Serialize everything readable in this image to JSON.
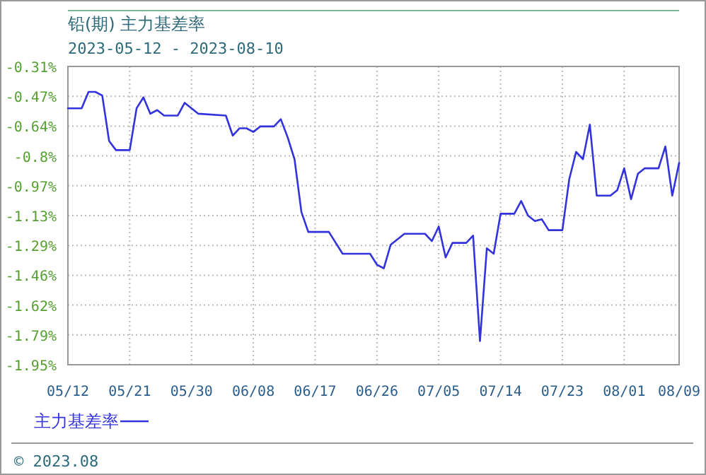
{
  "chart_data": {
    "type": "line",
    "title": "铅(期) 主力基差率",
    "subtitle": "2023-05-12 - 2023-08-10",
    "annotations": [
      "© 2023.08"
    ],
    "x": [
      "2023-05-12",
      "2023-05-14",
      "2023-05-15",
      "2023-05-16",
      "2023-05-17",
      "2023-05-18",
      "2023-05-19",
      "2023-05-21",
      "2023-05-22",
      "2023-05-23",
      "2023-05-24",
      "2023-05-25",
      "2023-05-26",
      "2023-05-28",
      "2023-05-29",
      "2023-05-31",
      "2023-06-04",
      "2023-06-05",
      "2023-06-06",
      "2023-06-07",
      "2023-06-08",
      "2023-06-09",
      "2023-06-11",
      "2023-06-12",
      "2023-06-13",
      "2023-06-14",
      "2023-06-15",
      "2023-06-16",
      "2023-06-19",
      "2023-06-21",
      "2023-06-25",
      "2023-06-26",
      "2023-06-27",
      "2023-06-28",
      "2023-06-30",
      "2023-07-03",
      "2023-07-04",
      "2023-07-05",
      "2023-07-06",
      "2023-07-07",
      "2023-07-09",
      "2023-07-10",
      "2023-07-11",
      "2023-07-12",
      "2023-07-13",
      "2023-07-14",
      "2023-07-16",
      "2023-07-17",
      "2023-07-18",
      "2023-07-19",
      "2023-07-20",
      "2023-07-21",
      "2023-07-23",
      "2023-07-24",
      "2023-07-25",
      "2023-07-26",
      "2023-07-27",
      "2023-07-28",
      "2023-07-30",
      "2023-07-31",
      "2023-08-01",
      "2023-08-02",
      "2023-08-03",
      "2023-08-04",
      "2023-08-06",
      "2023-08-07",
      "2023-08-08",
      "2023-08-09"
    ],
    "series": [
      {
        "name": "主力基差率",
        "color": "#3333dd",
        "values": [
          -0.54,
          -0.54,
          -0.45,
          -0.45,
          -0.47,
          -0.72,
          -0.77,
          -0.77,
          -0.54,
          -0.48,
          -0.57,
          -0.55,
          -0.58,
          -0.58,
          -0.51,
          -0.57,
          -0.58,
          -0.69,
          -0.65,
          -0.65,
          -0.67,
          -0.64,
          -0.64,
          -0.6,
          -0.7,
          -0.82,
          -1.11,
          -1.22,
          -1.22,
          -1.34,
          -1.34,
          -1.4,
          -1.42,
          -1.29,
          -1.23,
          -1.23,
          -1.27,
          -1.19,
          -1.36,
          -1.28,
          -1.28,
          -1.24,
          -1.82,
          -1.31,
          -1.34,
          -1.12,
          -1.12,
          -1.05,
          -1.13,
          -1.16,
          -1.15,
          -1.21,
          -1.21,
          -0.93,
          -0.78,
          -0.82,
          -0.63,
          -1.02,
          -1.02,
          -0.99,
          -0.87,
          -1.04,
          -0.9,
          -0.87,
          -0.87,
          -0.75,
          -1.02,
          -0.84
        ]
      }
    ],
    "xlim": [
      "2023-05-12",
      "2023-08-09"
    ],
    "xticks": [
      {
        "value": "2023-05-12",
        "label": "05/12"
      },
      {
        "value": "2023-05-21",
        "label": "05/21"
      },
      {
        "value": "2023-05-30",
        "label": "05/30"
      },
      {
        "value": "2023-06-08",
        "label": "06/08"
      },
      {
        "value": "2023-06-17",
        "label": "06/17"
      },
      {
        "value": "2023-06-26",
        "label": "06/26"
      },
      {
        "value": "2023-07-05",
        "label": "07/05"
      },
      {
        "value": "2023-07-14",
        "label": "07/14"
      },
      {
        "value": "2023-07-23",
        "label": "07/23"
      },
      {
        "value": "2023-08-01",
        "label": "08/01"
      },
      {
        "value": "2023-08-09",
        "label": "08/09"
      }
    ],
    "ylim": [
      -1.95,
      -0.31
    ],
    "yticks": [
      {
        "value": -0.31,
        "label": "-0.31%"
      },
      {
        "value": -0.474,
        "label": "-0.47%"
      },
      {
        "value": -0.638,
        "label": "-0.64%"
      },
      {
        "value": -0.802,
        "label": "-0.8%"
      },
      {
        "value": -0.966,
        "label": "-0.97%"
      },
      {
        "value": -1.13,
        "label": "-1.13%"
      },
      {
        "value": -1.294,
        "label": "-1.29%"
      },
      {
        "value": -1.458,
        "label": "-1.46%"
      },
      {
        "value": -1.622,
        "label": "-1.62%"
      },
      {
        "value": -1.786,
        "label": "-1.79%"
      },
      {
        "value": -1.95,
        "label": "-1.95%"
      }
    ],
    "grid": true,
    "legend": "bottom left",
    "marker": "none",
    "line_style": "solid"
  }
}
